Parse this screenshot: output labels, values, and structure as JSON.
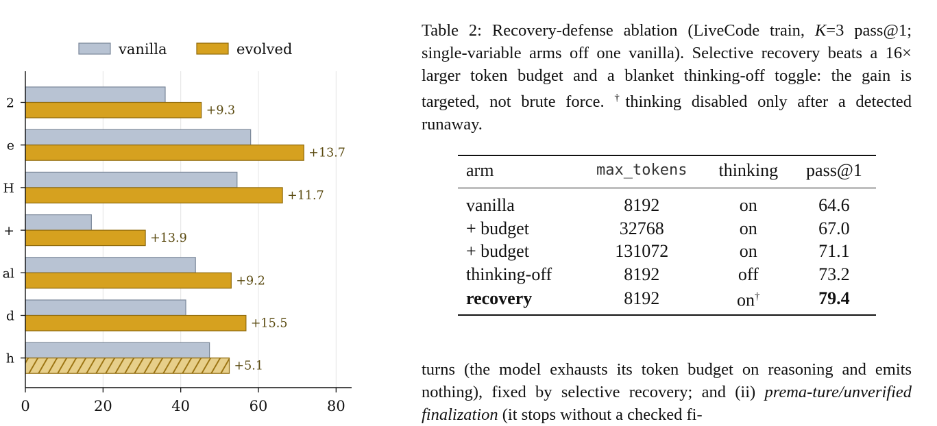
{
  "chart_data": {
    "type": "bar",
    "orientation": "horizontal",
    "categories": [
      "2",
      "e",
      "H",
      "+",
      "al",
      "d",
      "h"
    ],
    "series": [
      {
        "name": "vanilla",
        "color": "#b8c3d3",
        "edge": "#7a8799",
        "values": [
          36.0,
          58.0,
          54.5,
          17.0,
          43.8,
          41.3,
          47.4
        ]
      },
      {
        "name": "evolved",
        "color": "#d6a11f",
        "edge": "#8f6a0c",
        "values": [
          45.3,
          71.7,
          66.2,
          30.9,
          53.0,
          56.8,
          52.5
        ]
      }
    ],
    "annotations": [
      "+9.3",
      "+13.7",
      "+11.7",
      "+13.9",
      "+9.2",
      "+15.5",
      "+5.1"
    ],
    "hatched_category_index": 6,
    "xticks": [
      "0",
      "20",
      "40",
      "60",
      "80"
    ],
    "xlim": [
      0,
      84
    ],
    "grid": "vertical",
    "legend": "top"
  },
  "caption": {
    "label": "Table 2:",
    "text_before_k": "Recovery-defense ablation (LiveCode train,",
    "k": "K",
    "k_eq": "=3",
    "text_after_k": "pass@1; single-variable arms off one vanilla). Selective recovery beats a 16× larger token budget and a blanket thinking-off toggle: the gain is targeted, not brute force.",
    "dagger": "†",
    "footnote": "thinking disabled only after a detected runaway."
  },
  "table": {
    "headers": [
      "arm",
      "max_tokens",
      "thinking",
      "pass@1"
    ],
    "rows": [
      {
        "arm": "vanilla",
        "max_tokens": "8192",
        "thinking": "on",
        "dagger": "",
        "pass": "64.6",
        "bold": false
      },
      {
        "arm": "+ budget",
        "max_tokens": "32768",
        "thinking": "on",
        "dagger": "",
        "pass": "67.0",
        "bold": false
      },
      {
        "arm": "+ budget",
        "max_tokens": "131072",
        "thinking": "on",
        "dagger": "",
        "pass": "71.1",
        "bold": false
      },
      {
        "arm": "thinking-off",
        "max_tokens": "8192",
        "thinking": "off",
        "dagger": "",
        "pass": "73.2",
        "bold": false
      },
      {
        "arm": "recovery",
        "max_tokens": "8192",
        "thinking": "on",
        "dagger": "†",
        "pass": "79.4",
        "bold": true
      }
    ]
  },
  "body": {
    "text1": "turns (the model exhausts its token budget on reasoning and emits nothing), fixed by selective recovery; and (ii)",
    "italic": "prema-ture/unverified finalization",
    "text2": "(it stops without a checked fi-"
  }
}
